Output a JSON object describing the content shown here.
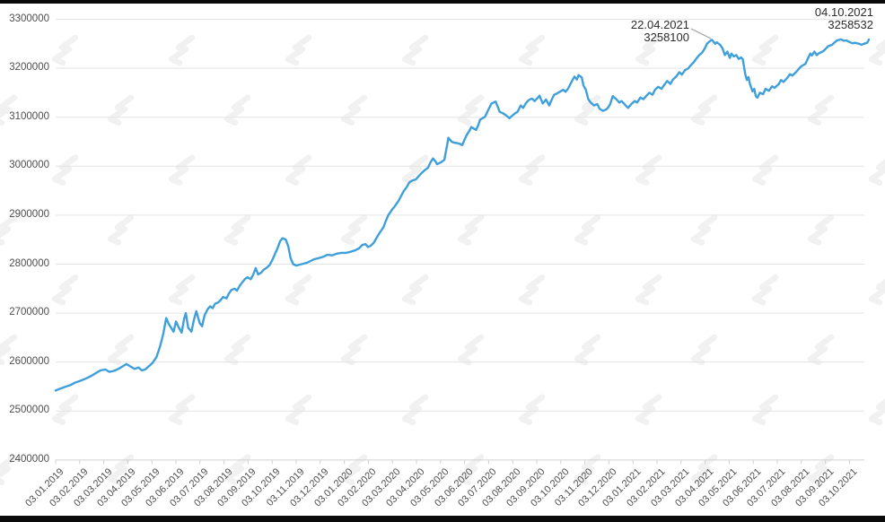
{
  "chart_data": {
    "type": "line",
    "title": "",
    "legend": "none",
    "grid": "horizontal",
    "line_color": "#3f9fdb",
    "grid_color": "#e4e4e4",
    "axis_line_color": "#d0d0d0",
    "axis_label_color": "#4d4d4d",
    "annotation_color": "#2b2b2b",
    "watermark_color": "#f1f1f1",
    "ylim": [
      2400000,
      3300000
    ],
    "y_tick_step": 100000,
    "y_tick_labels": [
      "3300000",
      "3200000",
      "3100000",
      "3000000",
      "2900000",
      "2800000",
      "2700000",
      "2600000",
      "2500000",
      "2400000"
    ],
    "x_tick_labels": [
      "03.01.2019",
      "03.02.2019",
      "03.03.2019",
      "03.04.2019",
      "03.05.2019",
      "03.06.2019",
      "03.07.2019",
      "03.08.2019",
      "03.09.2019",
      "03.10.2019",
      "03.11.2019",
      "03.12.2019",
      "03.01.2020",
      "03.02.2020",
      "03.03.2020",
      "03.04.2020",
      "03.05.2020",
      "03.06.2020",
      "03.07.2020",
      "03.08.2020",
      "03.09.2020",
      "03.10.2020",
      "03.11.2020",
      "03.12.2020",
      "03.01.2021",
      "03.02.2021",
      "03.03.2021",
      "03.04.2021",
      "03.05.2021",
      "03.06.2021",
      "03.07.2021",
      "03.08.2021",
      "03.09.2021",
      "03.10.2021"
    ],
    "annotations": [
      {
        "date": "22.04.2021",
        "value_label": "3258100",
        "value": 3258100
      },
      {
        "date": "04.10.2021",
        "value_label": "3258532",
        "value": 3258532
      }
    ],
    "watermark": "forklog-logo",
    "points": [
      [
        0,
        2542000
      ],
      [
        0.6,
        2546000
      ],
      [
        1.1,
        2549000
      ],
      [
        1.8,
        2553000
      ],
      [
        2.4,
        2558000
      ],
      [
        3.1,
        2562000
      ],
      [
        3.8,
        2567000
      ],
      [
        4.4,
        2572000
      ],
      [
        5,
        2578000
      ],
      [
        5.5,
        2583000
      ],
      [
        6.1,
        2585000
      ],
      [
        6.6,
        2580000
      ],
      [
        7.2,
        2582000
      ],
      [
        7.7,
        2586000
      ],
      [
        8.3,
        2592000
      ],
      [
        8.7,
        2596000
      ],
      [
        9.2,
        2591000
      ],
      [
        9.7,
        2586000
      ],
      [
        10.2,
        2589000
      ],
      [
        10.6,
        2583000
      ],
      [
        11,
        2585000
      ],
      [
        11.5,
        2592000
      ],
      [
        11.9,
        2598000
      ],
      [
        12.4,
        2610000
      ],
      [
        12.8,
        2630000
      ],
      [
        13.2,
        2655000
      ],
      [
        13.6,
        2690000
      ],
      [
        13.9,
        2678000
      ],
      [
        14.2,
        2670000
      ],
      [
        14.5,
        2662000
      ],
      [
        14.8,
        2683000
      ],
      [
        15.1,
        2672000
      ],
      [
        15.5,
        2660000
      ],
      [
        15.8,
        2688000
      ],
      [
        16,
        2700000
      ],
      [
        16.3,
        2670000
      ],
      [
        16.7,
        2662000
      ],
      [
        17,
        2686000
      ],
      [
        17.3,
        2704000
      ],
      [
        17.7,
        2680000
      ],
      [
        18,
        2673000
      ],
      [
        18.3,
        2695000
      ],
      [
        18.7,
        2708000
      ],
      [
        19,
        2714000
      ],
      [
        19.3,
        2710000
      ],
      [
        19.6,
        2719000
      ],
      [
        20,
        2722000
      ],
      [
        20.3,
        2727000
      ],
      [
        20.6,
        2733000
      ],
      [
        21,
        2730000
      ],
      [
        21.3,
        2740000
      ],
      [
        21.6,
        2747000
      ],
      [
        22,
        2750000
      ],
      [
        22.3,
        2746000
      ],
      [
        22.6,
        2755000
      ],
      [
        23,
        2764000
      ],
      [
        23.3,
        2770000
      ],
      [
        23.6,
        2773000
      ],
      [
        24,
        2769000
      ],
      [
        24.3,
        2779000
      ],
      [
        24.6,
        2792000
      ],
      [
        24.9,
        2779000
      ],
      [
        25.3,
        2783000
      ],
      [
        25.6,
        2789000
      ],
      [
        25.9,
        2792000
      ],
      [
        26.3,
        2798000
      ],
      [
        26.6,
        2807000
      ],
      [
        26.9,
        2818000
      ],
      [
        27.3,
        2833000
      ],
      [
        27.6,
        2847000
      ],
      [
        27.9,
        2853000
      ],
      [
        28.3,
        2850000
      ],
      [
        28.6,
        2837000
      ],
      [
        28.9,
        2812000
      ],
      [
        29.2,
        2800000
      ],
      [
        29.6,
        2797000
      ],
      [
        30,
        2799000
      ],
      [
        30.5,
        2801000
      ],
      [
        30.9,
        2803000
      ],
      [
        31.3,
        2806000
      ],
      [
        31.8,
        2810000
      ],
      [
        32.3,
        2812000
      ],
      [
        32.9,
        2815000
      ],
      [
        33.4,
        2819000
      ],
      [
        34,
        2818000
      ],
      [
        34.5,
        2821000
      ],
      [
        35.1,
        2823000
      ],
      [
        35.7,
        2823000
      ],
      [
        36.2,
        2825000
      ],
      [
        36.8,
        2828000
      ],
      [
        37.3,
        2832000
      ],
      [
        37.7,
        2839000
      ],
      [
        38.1,
        2841000
      ],
      [
        38.4,
        2835000
      ],
      [
        38.7,
        2837000
      ],
      [
        39.1,
        2843000
      ],
      [
        39.4,
        2852000
      ],
      [
        39.8,
        2863000
      ],
      [
        40.3,
        2875000
      ],
      [
        40.6,
        2888000
      ],
      [
        40.9,
        2900000
      ],
      [
        41.4,
        2912000
      ],
      [
        41.7,
        2918000
      ],
      [
        42.2,
        2930000
      ],
      [
        42.5,
        2940000
      ],
      [
        42.8,
        2949000
      ],
      [
        43.2,
        2958000
      ],
      [
        43.5,
        2967000
      ],
      [
        43.9,
        2971000
      ],
      [
        44.3,
        2973000
      ],
      [
        44.6,
        2979000
      ],
      [
        45,
        2986000
      ],
      [
        45.4,
        2992000
      ],
      [
        45.8,
        2997000
      ],
      [
        46.1,
        3008000
      ],
      [
        46.4,
        3016000
      ],
      [
        46.7,
        3010000
      ],
      [
        46.9,
        3004000
      ],
      [
        47.4,
        3008000
      ],
      [
        47.8,
        3013000
      ],
      [
        48.1,
        3040000
      ],
      [
        48.3,
        3058000
      ],
      [
        48.7,
        3050000
      ],
      [
        49,
        3048000
      ],
      [
        49.4,
        3047000
      ],
      [
        49.8,
        3045000
      ],
      [
        50,
        3043000
      ],
      [
        50.3,
        3055000
      ],
      [
        50.6,
        3065000
      ],
      [
        50.9,
        3073000
      ],
      [
        51.1,
        3080000
      ],
      [
        51.4,
        3077000
      ],
      [
        51.7,
        3074000
      ],
      [
        52,
        3085000
      ],
      [
        52.2,
        3095000
      ],
      [
        52.8,
        3101000
      ],
      [
        53.2,
        3115000
      ],
      [
        53.6,
        3128000
      ],
      [
        54.1,
        3132000
      ],
      [
        54.4,
        3120000
      ],
      [
        54.6,
        3111000
      ],
      [
        55,
        3108000
      ],
      [
        55.3,
        3105000
      ],
      [
        55.6,
        3101000
      ],
      [
        55.8,
        3098000
      ],
      [
        56.2,
        3104000
      ],
      [
        56.5,
        3108000
      ],
      [
        56.8,
        3111000
      ],
      [
        57.2,
        3124000
      ],
      [
        57.5,
        3119000
      ],
      [
        57.8,
        3128000
      ],
      [
        58.1,
        3134000
      ],
      [
        58.4,
        3137000
      ],
      [
        58.6,
        3138000
      ],
      [
        58.9,
        3133000
      ],
      [
        59.3,
        3140000
      ],
      [
        59.5,
        3144000
      ],
      [
        59.9,
        3128000
      ],
      [
        60.3,
        3136000
      ],
      [
        60.7,
        3124000
      ],
      [
        61,
        3136000
      ],
      [
        61.3,
        3146000
      ],
      [
        61.6,
        3148000
      ],
      [
        61.8,
        3150000
      ],
      [
        62.1,
        3153000
      ],
      [
        62.4,
        3156000
      ],
      [
        62.7,
        3152000
      ],
      [
        63,
        3158000
      ],
      [
        63.5,
        3174000
      ],
      [
        63.8,
        3183000
      ],
      [
        64.1,
        3177000
      ],
      [
        64.3,
        3186000
      ],
      [
        64.7,
        3181000
      ],
      [
        64.9,
        3165000
      ],
      [
        65.2,
        3156000
      ],
      [
        65.5,
        3137000
      ],
      [
        65.8,
        3130000
      ],
      [
        66.2,
        3124000
      ],
      [
        66.6,
        3127000
      ],
      [
        66.9,
        3117000
      ],
      [
        67.3,
        3113000
      ],
      [
        67.7,
        3116000
      ],
      [
        67.9,
        3119000
      ],
      [
        68.2,
        3127000
      ],
      [
        68.5,
        3143000
      ],
      [
        69,
        3136000
      ],
      [
        69.3,
        3130000
      ],
      [
        69.6,
        3133000
      ],
      [
        70.1,
        3124000
      ],
      [
        70.4,
        3119000
      ],
      [
        70.8,
        3127000
      ],
      [
        71.2,
        3133000
      ],
      [
        71.5,
        3130000
      ],
      [
        71.9,
        3140000
      ],
      [
        72.3,
        3137000
      ],
      [
        72.6,
        3143000
      ],
      [
        73,
        3150000
      ],
      [
        73.4,
        3146000
      ],
      [
        73.7,
        3156000
      ],
      [
        74.1,
        3162000
      ],
      [
        74.5,
        3158000
      ],
      [
        74.8,
        3165000
      ],
      [
        75.2,
        3174000
      ],
      [
        75.6,
        3168000
      ],
      [
        75.9,
        3177000
      ],
      [
        76.3,
        3183000
      ],
      [
        76.7,
        3192000
      ],
      [
        77,
        3187000
      ],
      [
        77.4,
        3196000
      ],
      [
        77.8,
        3200000
      ],
      [
        78.1,
        3206000
      ],
      [
        78.5,
        3213000
      ],
      [
        78.8,
        3220000
      ],
      [
        79.1,
        3226000
      ],
      [
        79.5,
        3232000
      ],
      [
        79.8,
        3240000
      ],
      [
        80.1,
        3250000
      ],
      [
        80.5,
        3256000
      ],
      [
        80.7,
        3258100
      ],
      [
        80.9,
        3254000
      ],
      [
        81.1,
        3250000
      ],
      [
        81.3,
        3253000
      ],
      [
        81.7,
        3248000
      ],
      [
        82,
        3241000
      ],
      [
        82.3,
        3227000
      ],
      [
        82.6,
        3234000
      ],
      [
        82.9,
        3221000
      ],
      [
        83.1,
        3230000
      ],
      [
        83.4,
        3224000
      ],
      [
        83.7,
        3227000
      ],
      [
        84,
        3219000
      ],
      [
        84.3,
        3222000
      ],
      [
        84.5,
        3218000
      ],
      [
        84.8,
        3188000
      ],
      [
        85,
        3176000
      ],
      [
        85.2,
        3182000
      ],
      [
        85.4,
        3167000
      ],
      [
        85.7,
        3153000
      ],
      [
        85.9,
        3158000
      ],
      [
        86.1,
        3143000
      ],
      [
        86.3,
        3140000
      ],
      [
        86.6,
        3150000
      ],
      [
        87,
        3147000
      ],
      [
        87.3,
        3158000
      ],
      [
        87.7,
        3154000
      ],
      [
        88.1,
        3163000
      ],
      [
        88.4,
        3160000
      ],
      [
        88.9,
        3167000
      ],
      [
        89.2,
        3176000
      ],
      [
        89.5,
        3172000
      ],
      [
        90,
        3181000
      ],
      [
        90.3,
        3188000
      ],
      [
        90.6,
        3185000
      ],
      [
        91.1,
        3193000
      ],
      [
        91.4,
        3199000
      ],
      [
        91.7,
        3204000
      ],
      [
        92.2,
        3209000
      ],
      [
        92.5,
        3220000
      ],
      [
        92.8,
        3230000
      ],
      [
        93,
        3226000
      ],
      [
        93.3,
        3234000
      ],
      [
        93.6,
        3227000
      ],
      [
        93.9,
        3231000
      ],
      [
        94.4,
        3235000
      ],
      [
        94.7,
        3240000
      ],
      [
        95,
        3245000
      ],
      [
        95.5,
        3248000
      ],
      [
        95.8,
        3253000
      ],
      [
        96.1,
        3257000
      ],
      [
        96.6,
        3259000
      ],
      [
        96.9,
        3256000
      ],
      [
        97.2,
        3257000
      ],
      [
        97.7,
        3253000
      ],
      [
        98,
        3251000
      ],
      [
        98.3,
        3252000
      ],
      [
        98.8,
        3250000
      ],
      [
        99.1,
        3248000
      ],
      [
        99.4,
        3250000
      ],
      [
        99.8,
        3252000
      ],
      [
        100,
        3258532
      ]
    ]
  }
}
